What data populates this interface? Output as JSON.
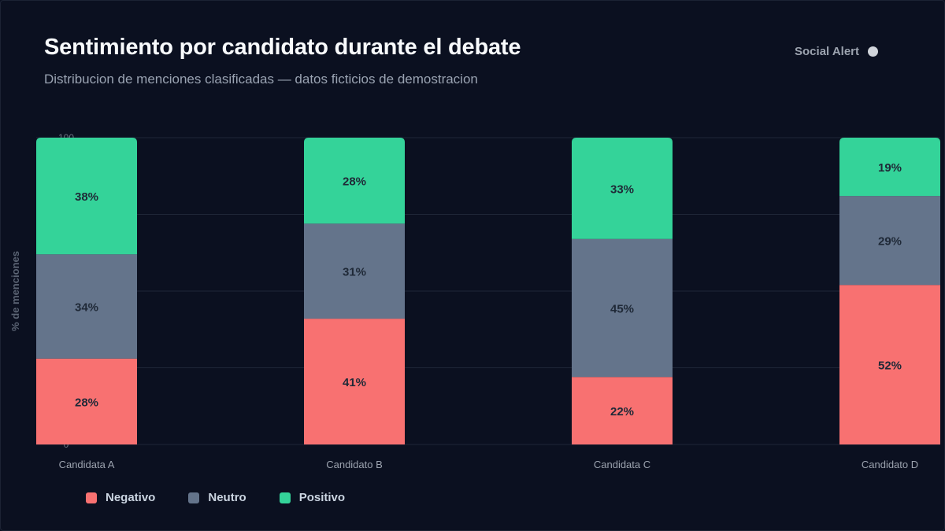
{
  "header": {
    "title": "Sentimiento por candidato durante el debate",
    "subtitle": "Distribucion de menciones clasificadas — datos ficticios de demostracion",
    "brand": "Social Alert"
  },
  "colors": {
    "background": "#0b1020",
    "negativo": "#f87171",
    "neutro": "#64748b",
    "positivo": "#34d399",
    "grid": "#1f2637"
  },
  "chart_data": {
    "type": "bar",
    "stacked": true,
    "categories": [
      "Candidata A",
      "Candidato B",
      "Candidata C",
      "Candidato D"
    ],
    "series": [
      {
        "name": "Negativo",
        "color": "#f87171",
        "values": [
          28,
          41,
          22,
          52
        ]
      },
      {
        "name": "Neutro",
        "color": "#64748b",
        "values": [
          34,
          31,
          45,
          29
        ]
      },
      {
        "name": "Positivo",
        "color": "#34d399",
        "values": [
          38,
          28,
          33,
          19
        ]
      }
    ],
    "ylabel": "% de menciones",
    "ylim": [
      0,
      100
    ],
    "yticks_shown": [
      "100",
      "0"
    ],
    "grid": true,
    "legend_position": "bottom-left"
  }
}
